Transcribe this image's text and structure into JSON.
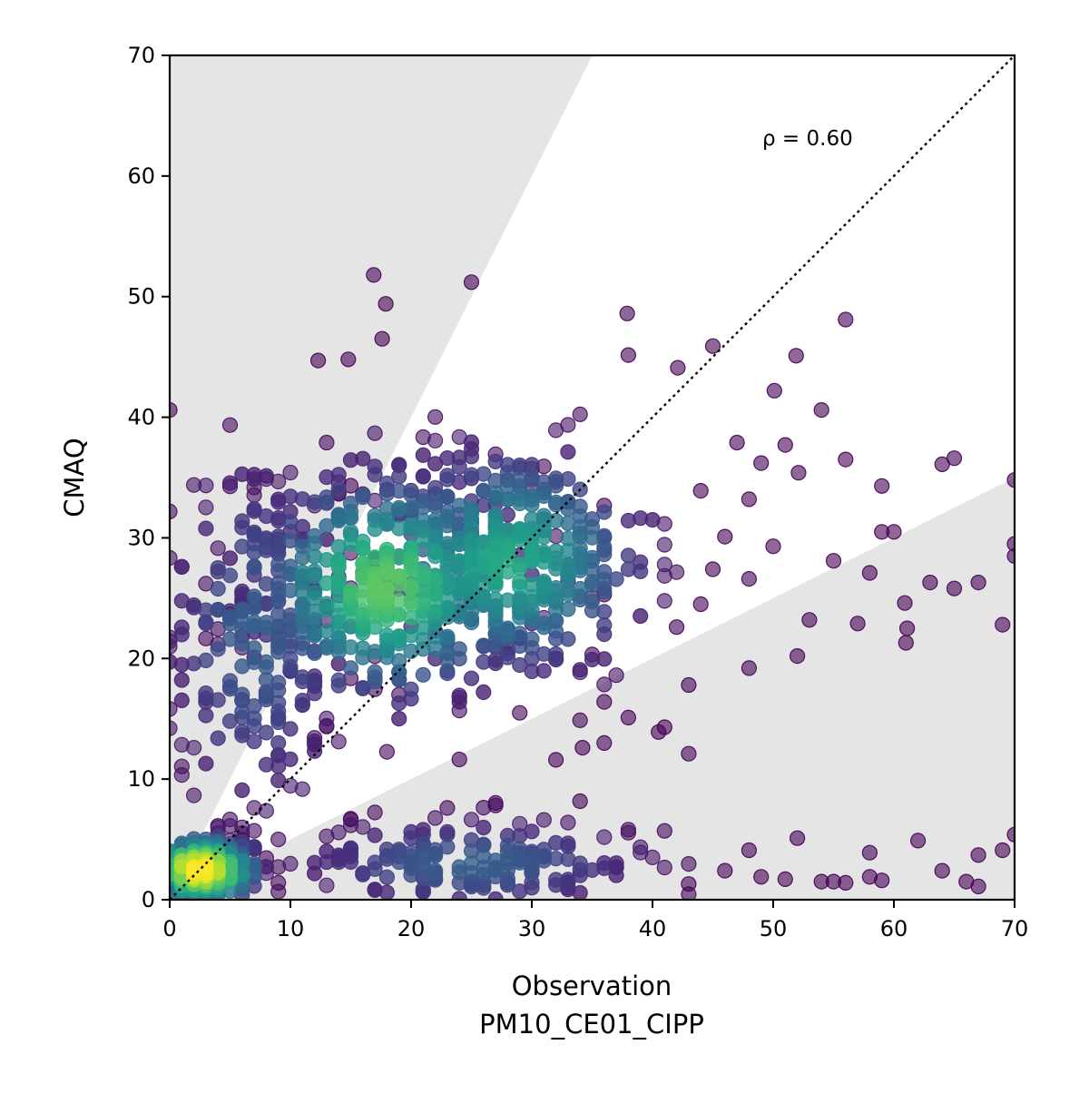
{
  "chart_data": {
    "type": "scatter",
    "title": "",
    "xlabel": "Observation",
    "xlabel_line2": "PM10_CE01_CIPP",
    "ylabel": "CMAQ",
    "xlim": [
      0,
      70
    ],
    "ylim": [
      0,
      70
    ],
    "x_ticks": [
      0,
      10,
      20,
      30,
      40,
      50,
      60,
      70
    ],
    "y_ticks": [
      0,
      10,
      20,
      30,
      40,
      50,
      60,
      70
    ],
    "x_tick_labels": [
      "0",
      "10",
      "20",
      "30",
      "40",
      "50",
      "60",
      "70"
    ],
    "y_tick_labels": [
      "0",
      "10",
      "20",
      "30",
      "40",
      "50",
      "60",
      "70"
    ],
    "grid": false,
    "legend": "none",
    "colormap": "viridis (point density)",
    "annotation": "ρ = 0.60",
    "reference_line": {
      "type": "1:1",
      "style": "dotted",
      "from": [
        0,
        0
      ],
      "to": [
        70,
        70
      ]
    },
    "shaded_regions": [
      {
        "description": "above factor-of-2 line",
        "boundary_slope": 2
      },
      {
        "description": "below factor-of-0.5 line",
        "boundary_slope": 0.5
      }
    ],
    "colors": {
      "low_density": "#440154",
      "mid_density": "#21918c",
      "high_density": "#fde725",
      "shade": "#e5e5e5"
    },
    "density_clusters": [
      {
        "center": [
          2.5,
          2.5
        ],
        "spread": [
          2.5,
          1.5
        ],
        "density": "highest"
      },
      {
        "center": [
          18,
          26
        ],
        "spread": [
          6,
          5
        ],
        "density": "high"
      },
      {
        "center": [
          28,
          28
        ],
        "spread": [
          6,
          5
        ],
        "density": "medium"
      },
      {
        "center": [
          7,
          22
        ],
        "spread": [
          4,
          8
        ],
        "density": "low"
      },
      {
        "center": [
          25,
          3
        ],
        "spread": [
          8,
          2
        ],
        "density": "low"
      }
    ],
    "outlier_points": [
      [
        0,
        40.6
      ],
      [
        16.9,
        51.8
      ],
      [
        17.9,
        49.4
      ],
      [
        25,
        51.2
      ],
      [
        17.6,
        46.5
      ],
      [
        14.8,
        44.8
      ],
      [
        12.3,
        44.7
      ],
      [
        37.9,
        48.6
      ],
      [
        56,
        48.1
      ],
      [
        51.9,
        45.1
      ],
      [
        45,
        45.9
      ],
      [
        42.1,
        44.1
      ],
      [
        50.1,
        42.2
      ],
      [
        54,
        40.6
      ],
      [
        56,
        36.5
      ],
      [
        65,
        36.6
      ],
      [
        64,
        36.1
      ],
      [
        59,
        34.3
      ],
      [
        70,
        34.8
      ],
      [
        52.1,
        35.4
      ],
      [
        59,
        30.5
      ],
      [
        60,
        30.5
      ],
      [
        63,
        26.3
      ],
      [
        65,
        25.8
      ],
      [
        67,
        26.3
      ],
      [
        60.9,
        24.6
      ],
      [
        61.1,
        22.5
      ],
      [
        61,
        21.3
      ],
      [
        62,
        4.9
      ],
      [
        64,
        2.4
      ],
      [
        66,
        1.5
      ],
      [
        67,
        1.1
      ],
      [
        67,
        3.7
      ],
      [
        69,
        4.1
      ],
      [
        70,
        5.4
      ],
      [
        69,
        22.8
      ],
      [
        70,
        28.5
      ],
      [
        70,
        29.5
      ],
      [
        48,
        19.2
      ],
      [
        52,
        20.2
      ],
      [
        43,
        17.8
      ],
      [
        43,
        12.1
      ],
      [
        41,
        14.3
      ],
      [
        38,
        15.1
      ],
      [
        36,
        16.4
      ],
      [
        34.2,
        12.6
      ],
      [
        32,
        11.6
      ],
      [
        52,
        5.1
      ],
      [
        58,
        3.9
      ],
      [
        48,
        4.1
      ],
      [
        55,
        1.5
      ],
      [
        56,
        1.4
      ],
      [
        54,
        1.5
      ],
      [
        58,
        1.9
      ],
      [
        59,
        1.6
      ],
      [
        51,
        1.7
      ],
      [
        49,
        1.9
      ],
      [
        46,
        2.4
      ],
      [
        43,
        1.3
      ],
      [
        40.5,
        13.9
      ],
      [
        57,
        22.9
      ],
      [
        58,
        27.1
      ],
      [
        55,
        28.1
      ],
      [
        53,
        23.2
      ],
      [
        48,
        26.6
      ],
      [
        50,
        29.3
      ],
      [
        46,
        30.1
      ],
      [
        48,
        33.2
      ],
      [
        47,
        37.9
      ],
      [
        49,
        36.2
      ],
      [
        51,
        37.7
      ],
      [
        44,
        33.9
      ],
      [
        45,
        27.4
      ],
      [
        44,
        24.5
      ],
      [
        42,
        22.6
      ]
    ]
  }
}
